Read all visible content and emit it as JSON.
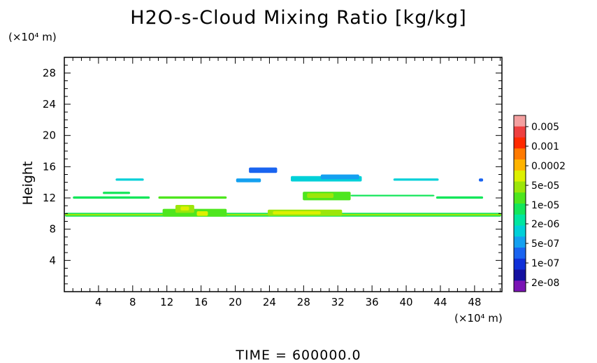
{
  "chart_data": {
    "type": "heatmap",
    "title": "H2O-s-Cloud Mixing Ratio [kg/kg]",
    "ylabel": "Height",
    "yunit": "(×10⁴ m)",
    "xunit": "(×10⁴ m)",
    "xlim": [
      0,
      51.2
    ],
    "ylim": [
      0,
      30
    ],
    "xticks": [
      4,
      8,
      12,
      16,
      20,
      24,
      28,
      32,
      36,
      40,
      44,
      48
    ],
    "yticks": [
      4,
      8,
      12,
      16,
      20,
      24,
      28
    ],
    "colorbar": {
      "labels": [
        "0.005",
        "0.001",
        "0.0002",
        "5e-05",
        "1e-05",
        "2e-06",
        "5e-07",
        "1e-07",
        "2e-08"
      ],
      "colors": [
        "#f4a0a0",
        "#ee4040",
        "#ff2a00",
        "#ff7a00",
        "#ffb400",
        "#ddf000",
        "#9ce60a",
        "#4ee61e",
        "#14e65a",
        "#00e6a0",
        "#00d0d8",
        "#14a0f0",
        "#1a64f0",
        "#1030d8",
        "#1410a0",
        "#7a14b4"
      ]
    },
    "regions": [
      {
        "x": [
          -0.2,
          51.3
        ],
        "y": [
          9.6,
          10.1
        ],
        "color": "#14e65a"
      },
      {
        "x": [
          -0.2,
          51.3
        ],
        "y": [
          9.75,
          9.95
        ],
        "color": "#9ce60a"
      },
      {
        "x": [
          23.8,
          32.5
        ],
        "y": [
          9.7,
          10.5
        ],
        "color": "#9ce60a"
      },
      {
        "x": [
          24.4,
          30.0
        ],
        "y": [
          9.9,
          10.3
        ],
        "color": "#ddf000"
      },
      {
        "x": [
          11.5,
          19.0
        ],
        "y": [
          9.6,
          10.6
        ],
        "color": "#4ee61e"
      },
      {
        "x": [
          13.0,
          15.2
        ],
        "y": [
          10.1,
          11.1
        ],
        "color": "#9ce60a"
      },
      {
        "x": [
          13.6,
          14.6
        ],
        "y": [
          10.4,
          10.9
        ],
        "color": "#ddf000"
      },
      {
        "x": [
          15.5,
          16.8
        ],
        "y": [
          9.7,
          10.3
        ],
        "color": "#ddf000"
      },
      {
        "x": [
          27.9,
          33.5
        ],
        "y": [
          11.7,
          12.8
        ],
        "color": "#4ee61e"
      },
      {
        "x": [
          28.4,
          31.5
        ],
        "y": [
          12.0,
          12.6
        ],
        "color": "#9ce60a"
      },
      {
        "x": [
          6.0,
          9.3
        ],
        "y": [
          14.2,
          14.5
        ],
        "color": "#00d0d8"
      },
      {
        "x": [
          4.5,
          7.7
        ],
        "y": [
          12.5,
          12.8
        ],
        "color": "#14e65a"
      },
      {
        "x": [
          20.1,
          23.0
        ],
        "y": [
          14.0,
          14.5
        ],
        "color": "#14a0f0"
      },
      {
        "x": [
          21.6,
          24.9
        ],
        "y": [
          15.2,
          15.9
        ],
        "color": "#1a64f0"
      },
      {
        "x": [
          26.5,
          34.8
        ],
        "y": [
          14.1,
          14.8
        ],
        "color": "#00d0d8"
      },
      {
        "x": [
          30.0,
          34.5
        ],
        "y": [
          14.4,
          15.0
        ],
        "color": "#14a0f0"
      },
      {
        "x": [
          38.5,
          43.8
        ],
        "y": [
          14.2,
          14.5
        ],
        "color": "#00d0d8"
      },
      {
        "x": [
          48.5,
          49.0
        ],
        "y": [
          14.1,
          14.5
        ],
        "color": "#1a64f0"
      },
      {
        "x": [
          1.0,
          10.0
        ],
        "y": [
          11.9,
          12.2
        ],
        "color": "#14e65a"
      },
      {
        "x": [
          11.0,
          19.0
        ],
        "y": [
          11.9,
          12.2
        ],
        "color": "#4ee61e"
      },
      {
        "x": [
          33.5,
          43.3
        ],
        "y": [
          12.2,
          12.4
        ],
        "color": "#14e65a"
      },
      {
        "x": [
          43.5,
          49.0
        ],
        "y": [
          11.9,
          12.2
        ],
        "color": "#14e65a"
      }
    ]
  },
  "footer": "TIME = 600000.0"
}
